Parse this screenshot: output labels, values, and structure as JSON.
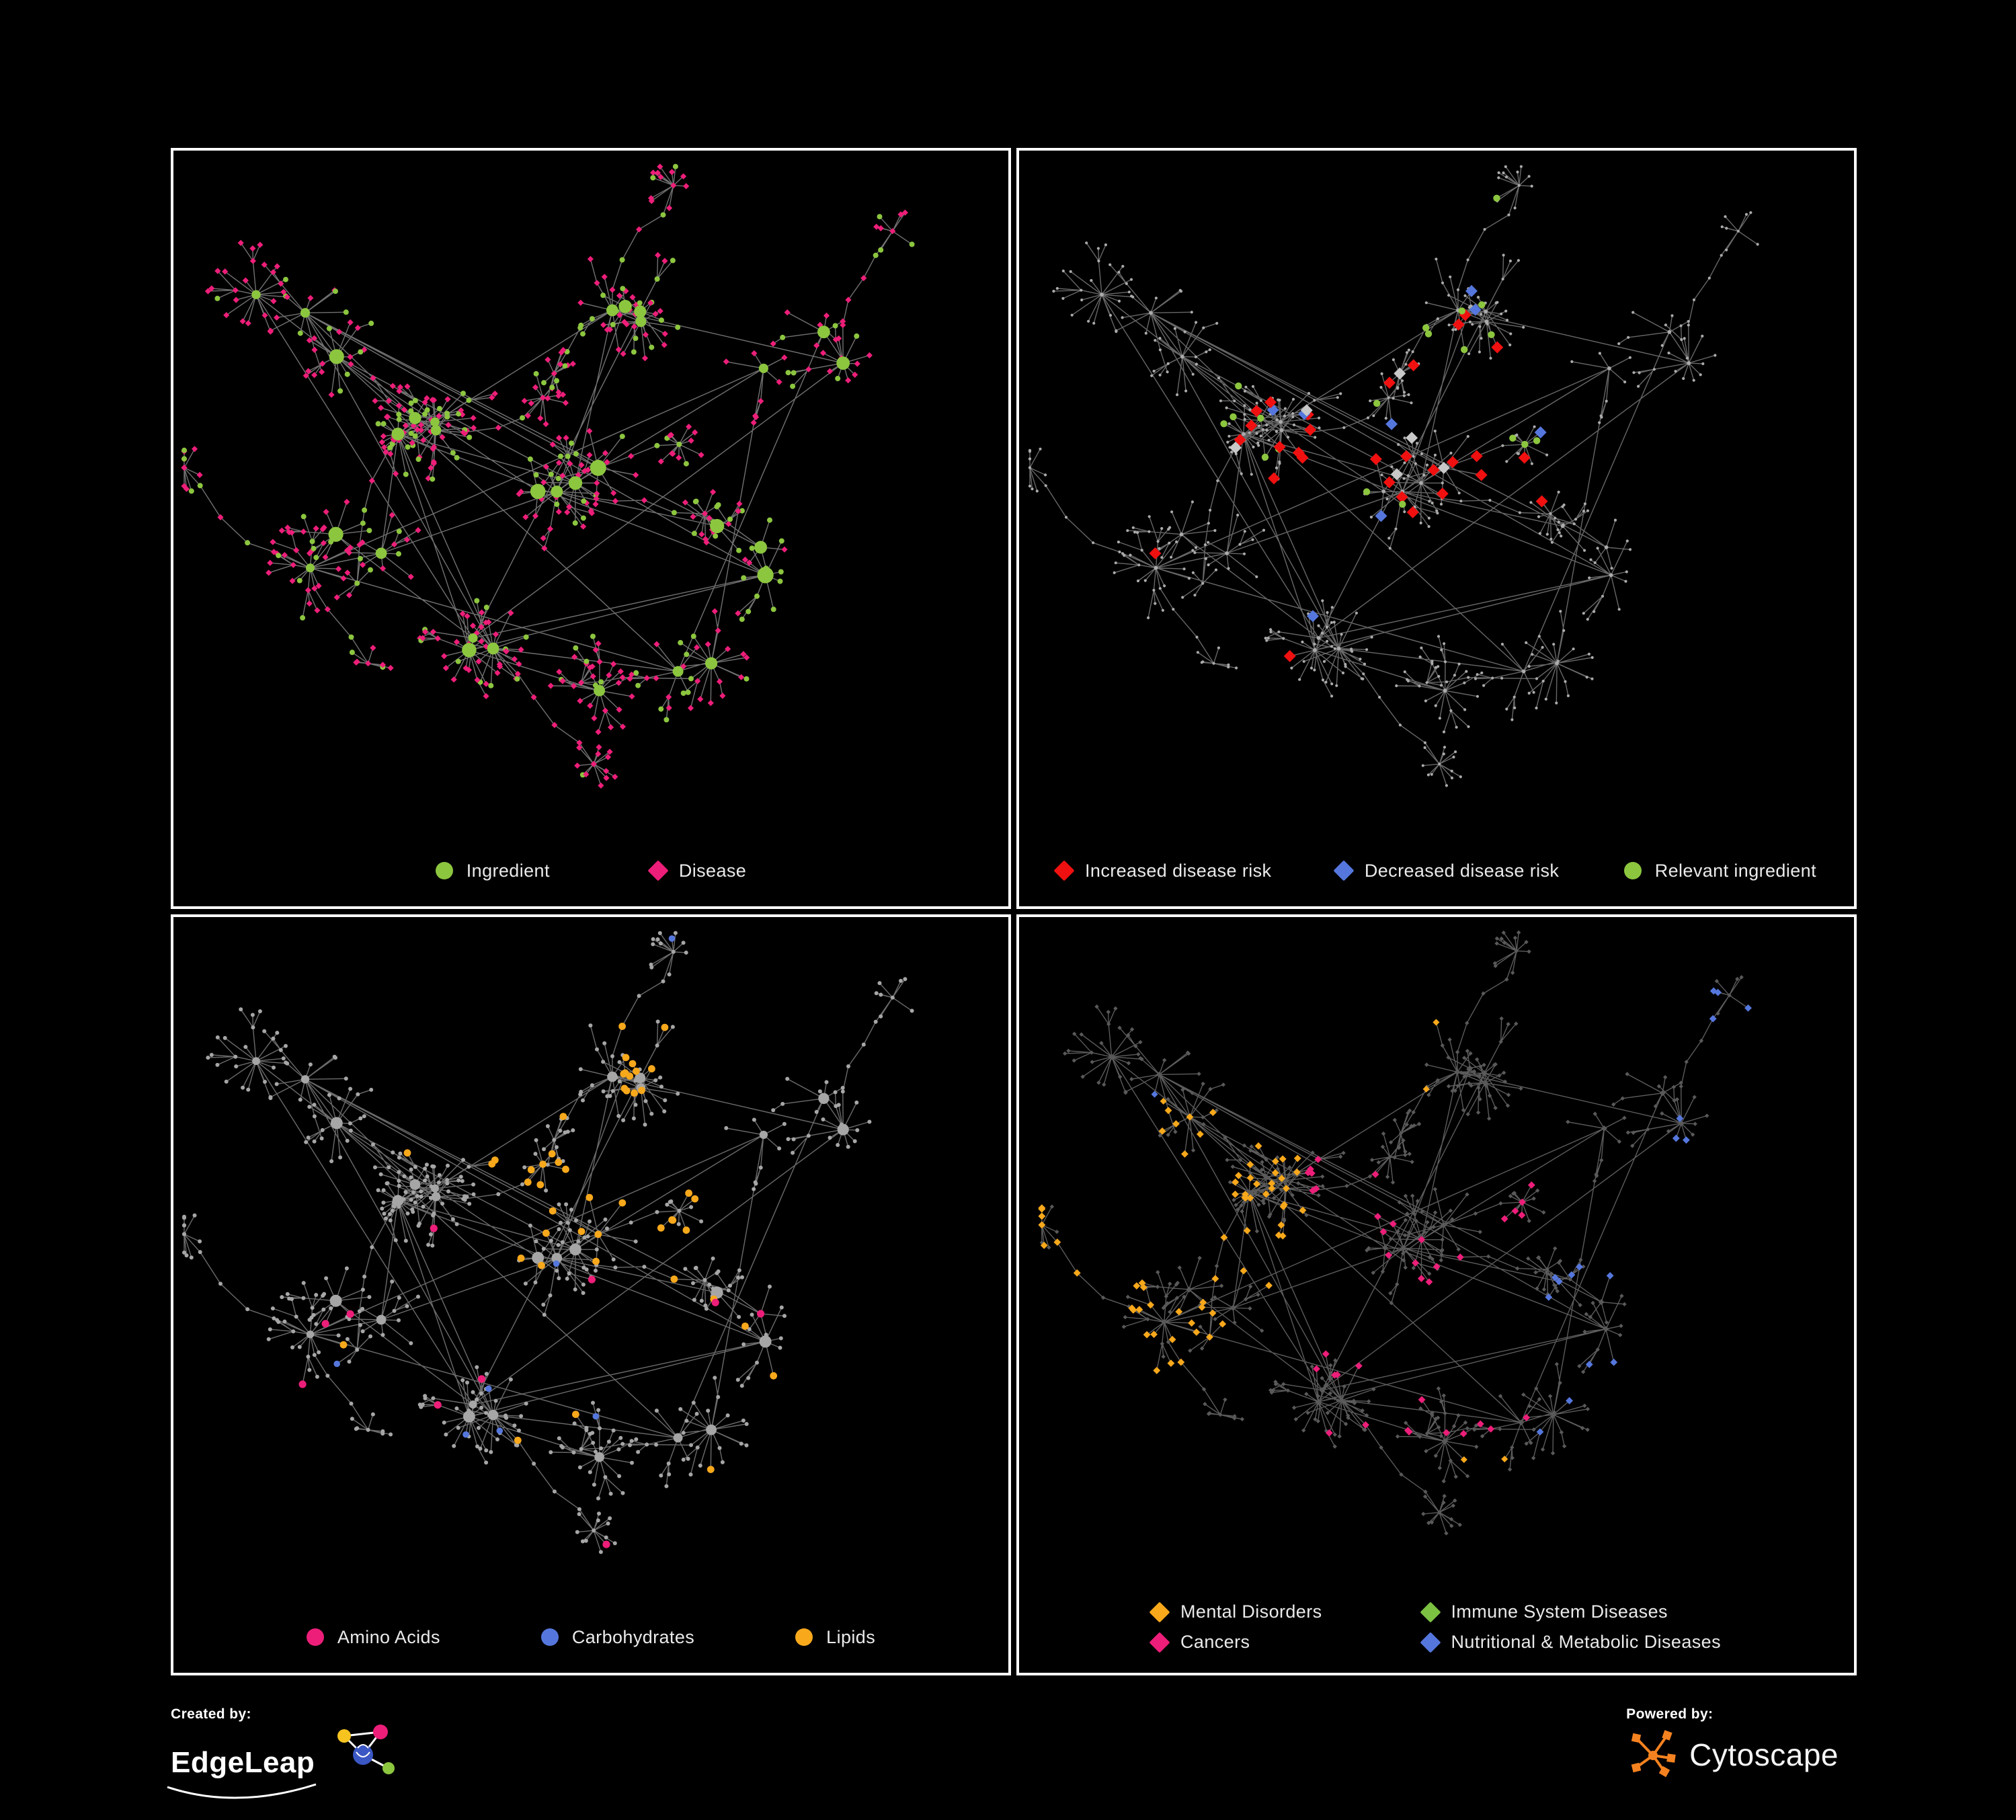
{
  "figure": {
    "background": "#000000",
    "panel_border": "#ffffff",
    "description": "Four views of the same ingredient-disease association network"
  },
  "panels": [
    {
      "id": "ingredient-disease",
      "type": "network",
      "seed": 1337,
      "legend_layout": "center",
      "legend": [
        {
          "label": "Ingredient",
          "color": "#8CC63F",
          "shape": "circle"
        },
        {
          "label": "Disease",
          "color": "#ED1E79",
          "shape": "diamond"
        }
      ],
      "paint": {
        "mode": "bipartite",
        "edge": "#979797",
        "hub_color": "#8CC63F",
        "leaf_primary": "#ED1E79",
        "leaf_secondary": "#8CC63F",
        "leaf_secondary_ratio": 0.28
      }
    },
    {
      "id": "disease-risk",
      "type": "network",
      "seed": 1337,
      "legend_layout": "spread",
      "legend": [
        {
          "label": "Increased disease risk",
          "color": "#F01010",
          "shape": "diamond"
        },
        {
          "label": "Decreased disease risk",
          "color": "#5577DD",
          "shape": "diamond"
        },
        {
          "label": "Relevant ingredient",
          "color": "#8CC63F",
          "shape": "circle"
        }
      ],
      "paint": {
        "mode": "risk",
        "edge": "#8A8A8A",
        "base_color": "#ABABAB",
        "increased": "#F01010",
        "decreased": "#5577DD",
        "ingredient": "#8CC63F",
        "neutral": "#C8C8C8"
      }
    },
    {
      "id": "macronutrients",
      "type": "network",
      "seed": 1337,
      "legend_layout": "center",
      "legend": [
        {
          "label": "Amino Acids",
          "color": "#ED1E79",
          "shape": "circle"
        },
        {
          "label": "Carbohydrates",
          "color": "#5577DD",
          "shape": "circle"
        },
        {
          "label": "Lipids",
          "color": "#F7A81B",
          "shape": "circle"
        }
      ],
      "paint": {
        "mode": "macro",
        "edge": "#8F8F8F",
        "base_color": "#A6A6A6",
        "amino": "#ED1E79",
        "carb": "#5577DD",
        "lipid": "#F7A81B"
      }
    },
    {
      "id": "disease-classes",
      "type": "network",
      "seed": 1337,
      "legend_layout": "grid2",
      "legend": [
        {
          "label": "Mental Disorders",
          "color": "#F7A81B",
          "shape": "diamond"
        },
        {
          "label": "Immune System Diseases",
          "color": "#7DC142",
          "shape": "diamond"
        },
        {
          "label": "Cancers",
          "color": "#ED1E79",
          "shape": "diamond"
        },
        {
          "label": "Nutritional & Metabolic Diseases",
          "color": "#5577DD",
          "shape": "diamond"
        }
      ],
      "paint": {
        "mode": "classes",
        "edge": "#7C7C7C",
        "base_color": "#595959",
        "mental": "#F7A81B",
        "immune": "#7DC142",
        "cancer": "#ED1E79",
        "metabolic": "#5577DD"
      }
    }
  ],
  "footer": {
    "created_by_label": "Created by:",
    "created_by_brand": "EdgeLeap",
    "powered_by_label": "Powered by:",
    "powered_by_brand": "Cytoscape",
    "cytoscape_orange": "#F58220"
  }
}
